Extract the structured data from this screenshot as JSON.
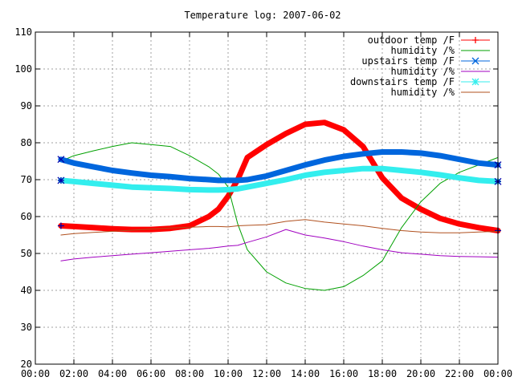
{
  "chart_data": {
    "type": "line",
    "title": "Temperature log: 2007-06-02",
    "xlabel": "",
    "ylabel": "",
    "x_range": [
      "00:00",
      "00:00"
    ],
    "x_ticks": [
      "00:00",
      "02:00",
      "04:00",
      "06:00",
      "08:00",
      "10:00",
      "12:00",
      "14:00",
      "16:00",
      "18:00",
      "20:00",
      "22:00",
      "00:00"
    ],
    "ylim": [
      20,
      110
    ],
    "y_ticks": [
      20,
      30,
      40,
      50,
      60,
      70,
      80,
      90,
      100,
      110
    ],
    "grid": true,
    "legend_position": "top-right",
    "x_hours": [
      1.33,
      2,
      3,
      4,
      5,
      6,
      7,
      8,
      9,
      9.5,
      10,
      10.5,
      11,
      12,
      13,
      14,
      15,
      16,
      17,
      18,
      19,
      20,
      21,
      22,
      23,
      24
    ],
    "series": [
      {
        "name": "outdoor temp /F",
        "color": "#ff0000",
        "marker": "plus",
        "values": [
          57.5,
          57.3,
          57,
          56.7,
          56.5,
          56.5,
          56.8,
          57.5,
          60,
          62,
          65.5,
          70,
          76,
          79.5,
          82.5,
          85,
          85.5,
          83.5,
          79,
          70.5,
          65,
          62,
          59.5,
          58,
          57,
          56.2
        ]
      },
      {
        "name": "humidity /%",
        "color": "#00a000",
        "marker": "none",
        "values": [
          75,
          76.5,
          77.8,
          79,
          80,
          79.5,
          79,
          76.5,
          73.5,
          71.5,
          68,
          58,
          51,
          45,
          42,
          40.5,
          40,
          41,
          44,
          48,
          57,
          64,
          69,
          72,
          74,
          76
        ]
      },
      {
        "name": "upstairs temp /F",
        "color": "#0066dd",
        "marker": "x",
        "values": [
          75.5,
          74.5,
          73.5,
          72.5,
          71.8,
          71.2,
          70.8,
          70.3,
          70,
          69.8,
          69.8,
          69.8,
          70,
          71,
          72.5,
          74,
          75.3,
          76.3,
          77,
          77.5,
          77.5,
          77.2,
          76.5,
          75.5,
          74.5,
          74
        ]
      },
      {
        "name": "humidity /%",
        "color": "#a000c0",
        "marker": "none",
        "values": [
          48,
          48.5,
          49,
          49.4,
          49.8,
          50.2,
          50.6,
          51,
          51.4,
          51.7,
          52,
          52.2,
          53,
          54.5,
          56.5,
          55,
          54.2,
          53.2,
          52,
          51,
          50.2,
          49.8,
          49.4,
          49.2,
          49.1,
          49
        ]
      },
      {
        "name": "downstairs temp /F",
        "color": "#33eeee",
        "marker": "star",
        "values": [
          69.8,
          69.5,
          69,
          68.5,
          68,
          67.8,
          67.6,
          67.3,
          67.2,
          67.2,
          67.3,
          67.5,
          68,
          69,
          70,
          71.2,
          72,
          72.5,
          73,
          73,
          72.5,
          72,
          71.3,
          70.5,
          69.8,
          69.5
        ]
      },
      {
        "name": "humidity /%",
        "color": "#b0501e",
        "marker": "none",
        "values": [
          55,
          55.4,
          55.7,
          56,
          56.3,
          56.6,
          56.9,
          57.1,
          57.3,
          57.3,
          57.2,
          57.5,
          57.6,
          57.8,
          58.7,
          59.2,
          58.5,
          58,
          57.5,
          56.8,
          56.2,
          55.8,
          55.6,
          55.6,
          55.8,
          56
        ]
      }
    ]
  }
}
